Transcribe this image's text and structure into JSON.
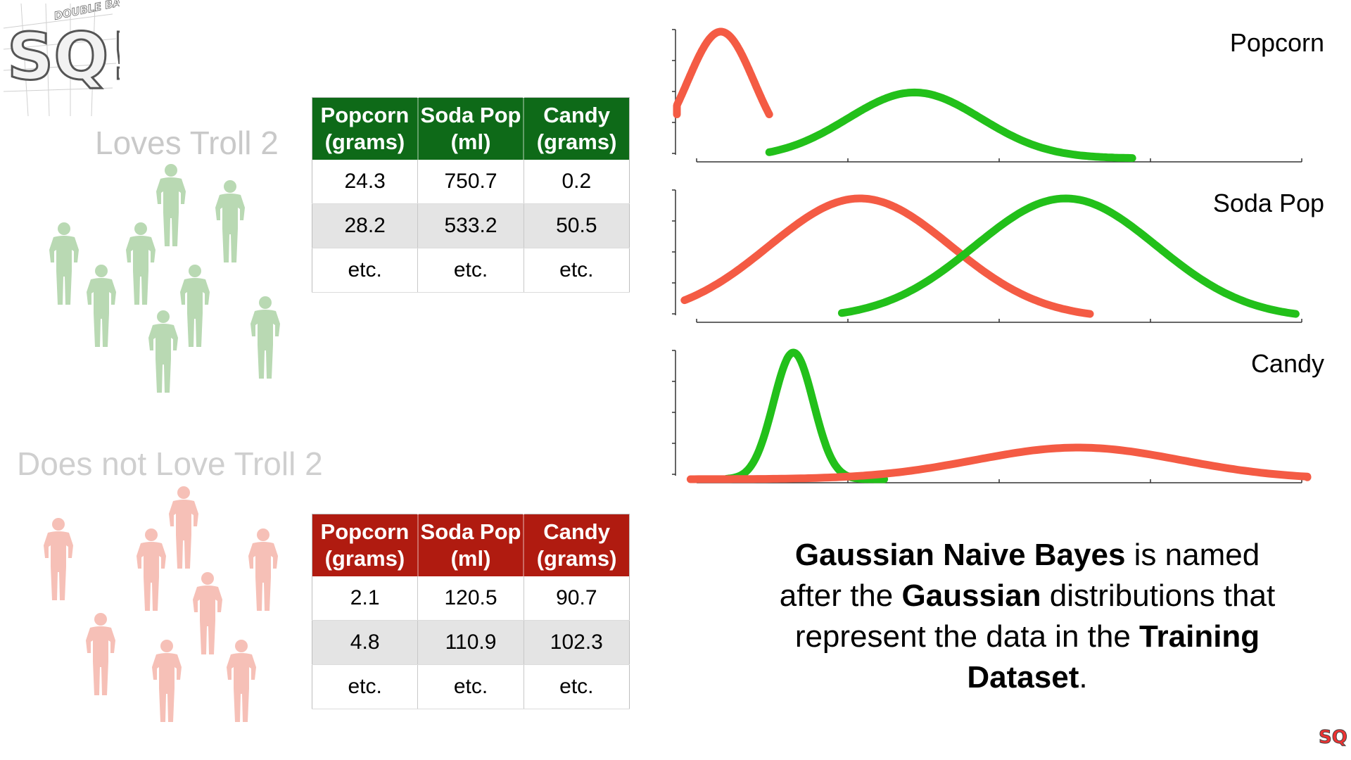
{
  "logo": {
    "letters": "SQ!",
    "banner": "DOUBLE BAM!!!"
  },
  "groups": {
    "loves": {
      "label": "Loves Troll 2",
      "figure_color": "#b9d9b3",
      "table": {
        "headers": [
          "Popcorn (grams)",
          "Soda Pop (ml)",
          "Candy (grams)"
        ],
        "rows": [
          [
            "24.3",
            "750.7",
            "0.2"
          ],
          [
            "28.2",
            "533.2",
            "50.5"
          ],
          [
            "etc.",
            "etc.",
            "etc."
          ]
        ],
        "header_color": "#0e6a18"
      }
    },
    "not_love": {
      "label": "Does not Love Troll 2",
      "figure_color": "#f6c0b7",
      "table": {
        "headers": [
          "Popcorn (grams)",
          "Soda Pop (ml)",
          "Candy (grams)"
        ],
        "rows": [
          [
            "2.1",
            "120.5",
            "90.7"
          ],
          [
            "4.8",
            "110.9",
            "102.3"
          ],
          [
            "etc.",
            "etc.",
            "etc."
          ]
        ],
        "header_color": "#b01b10"
      }
    }
  },
  "colors": {
    "loves_curve": "#22c01a",
    "not_love_curve": "#f45b44",
    "axis": "#333333"
  },
  "chart_data": [
    {
      "type": "line",
      "title": "Popcorn",
      "xlim": [
        0,
        10
      ],
      "series": [
        {
          "group": "not_love",
          "mean": 0.4,
          "sd": 0.55,
          "peak": 1.0,
          "x_range": [
            -0.4,
            1.2
          ]
        },
        {
          "group": "loves",
          "mean": 3.6,
          "sd": 1.1,
          "peak": 0.52,
          "x_range": [
            1.2,
            7.2
          ]
        }
      ]
    },
    {
      "type": "line",
      "title": "Soda Pop",
      "xlim": [
        0,
        10
      ],
      "series": [
        {
          "group": "not_love",
          "mean": 2.7,
          "sd": 1.5,
          "peak": 0.95,
          "x_range": [
            -0.2,
            6.5
          ]
        },
        {
          "group": "loves",
          "mean": 6.1,
          "sd": 1.5,
          "peak": 0.95,
          "x_range": [
            2.4,
            9.9
          ]
        }
      ]
    },
    {
      "type": "line",
      "title": "Candy",
      "xlim": [
        0,
        10
      ],
      "series": [
        {
          "group": "loves",
          "mean": 1.6,
          "sd": 0.33,
          "peak": 1.0,
          "x_range": [
            0.5,
            3.1
          ]
        },
        {
          "group": "not_love",
          "mean": 6.3,
          "sd": 1.7,
          "peak": 0.25,
          "x_range": [
            -0.1,
            10.3
          ]
        }
      ]
    }
  ],
  "caption": {
    "p1": "Gaussian Naive Bayes",
    "p2": " is named after the ",
    "p3": "Gaussian",
    "p4": " distributions that represent the data in the ",
    "p5": "Training Dataset",
    "p6": "."
  }
}
